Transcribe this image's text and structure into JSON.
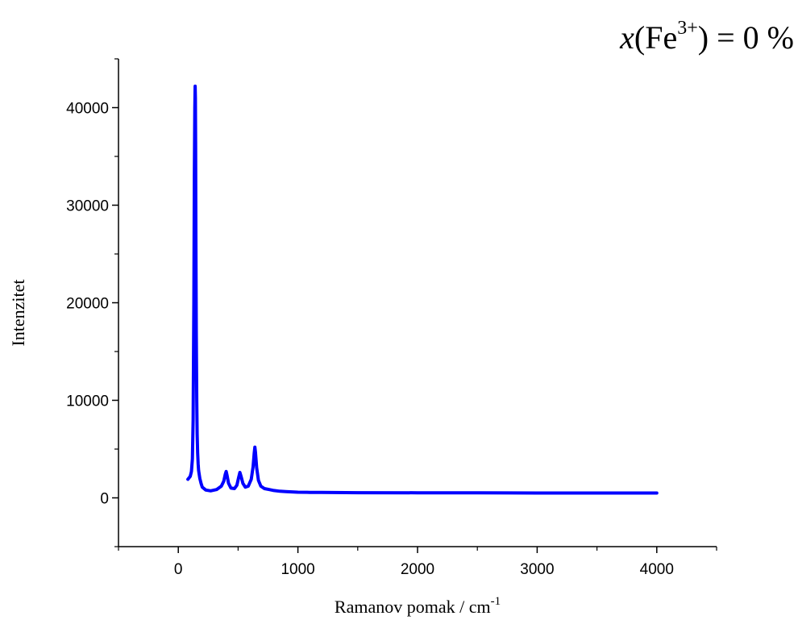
{
  "chart_data": {
    "type": "line",
    "title": "",
    "xlabel": "Ramanov pomak / cm",
    "xlabel_sup": "-1",
    "ylabel": "Intenzitet",
    "xlim": [
      -500,
      4500
    ],
    "ylim": [
      -5000,
      45000
    ],
    "x_ticks": [
      0,
      1000,
      2000,
      3000,
      4000
    ],
    "x_minor_ticks": [
      -500,
      500,
      1500,
      2500,
      3500,
      4500
    ],
    "y_ticks": [
      0,
      10000,
      20000,
      30000,
      40000
    ],
    "y_minor_ticks": [
      -5000,
      5000,
      15000,
      25000,
      35000,
      45000
    ],
    "x_tick_labels": [
      "0",
      "1000",
      "2000",
      "3000",
      "4000"
    ],
    "y_tick_labels": [
      "0",
      "10000",
      "20000",
      "30000",
      "40000"
    ],
    "grid": false,
    "annotation": {
      "var": "x",
      "open": "(Fe",
      "sup": "3+",
      "close": ") = 0 %"
    },
    "series": [
      {
        "color": "#0000ff",
        "x": [
          80,
          100,
          110,
          118,
          124,
          130,
          134,
          138,
          141,
          143,
          145,
          147,
          150,
          154,
          158,
          162,
          166,
          170,
          180,
          190,
          200,
          230,
          270,
          320,
          360,
          380,
          392,
          400,
          408,
          420,
          440,
          470,
          490,
          505,
          515,
          525,
          540,
          560,
          585,
          610,
          625,
          635,
          640,
          645,
          655,
          670,
          690,
          720,
          760,
          800,
          850,
          900,
          1000,
          1100,
          1200,
          1500,
          2000,
          2500,
          3000,
          3500,
          4000
        ],
        "y": [
          1900,
          2200,
          2700,
          4000,
          8000,
          20000,
          33000,
          40000,
          42200,
          41000,
          36000,
          27000,
          17000,
          10000,
          6500,
          4600,
          3500,
          2800,
          2000,
          1500,
          1100,
          800,
          720,
          850,
          1200,
          1700,
          2400,
          2700,
          2300,
          1500,
          1000,
          950,
          1300,
          2100,
          2600,
          2200,
          1500,
          1100,
          1200,
          1900,
          3200,
          4600,
          5200,
          4700,
          3100,
          1800,
          1200,
          950,
          850,
          750,
          680,
          640,
          580,
          560,
          550,
          530,
          520,
          510,
          500,
          500,
          500
        ]
      }
    ]
  }
}
